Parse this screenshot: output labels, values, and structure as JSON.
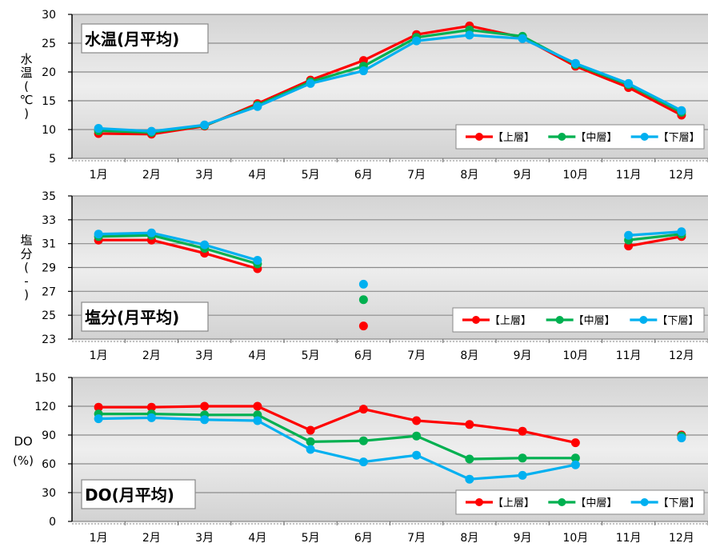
{
  "chart_data": [
    {
      "type": "line",
      "title": "水温(月平均)",
      "ylabel": "水温(℃)",
      "categories": [
        "1月",
        "2月",
        "3月",
        "4月",
        "5月",
        "6月",
        "7月",
        "8月",
        "9月",
        "10月",
        "11月",
        "12月"
      ],
      "ylim": [
        5,
        30
      ],
      "yticks": [
        5,
        10,
        15,
        20,
        25,
        30
      ],
      "grid": true,
      "legend_position": "bottom-right",
      "series": [
        {
          "name": "【上層】",
          "color": "#ff0000",
          "values": [
            9.3,
            9.2,
            10.6,
            14.5,
            18.6,
            22.0,
            26.5,
            28.0,
            26.0,
            21.0,
            17.3,
            12.5
          ]
        },
        {
          "name": "【中層】",
          "color": "#00b050",
          "values": [
            9.8,
            9.5,
            10.7,
            14.2,
            18.3,
            21.0,
            26.0,
            27.3,
            26.2,
            21.3,
            17.8,
            13.0
          ]
        },
        {
          "name": "【下層】",
          "color": "#00b0f0",
          "values": [
            10.2,
            9.7,
            10.8,
            14.0,
            18.0,
            20.2,
            25.4,
            26.4,
            25.8,
            21.5,
            18.0,
            13.3
          ]
        }
      ]
    },
    {
      "type": "line",
      "title": "塩分(月平均)",
      "ylabel": "塩分(-)",
      "categories": [
        "1月",
        "2月",
        "3月",
        "4月",
        "5月",
        "6月",
        "7月",
        "8月",
        "9月",
        "10月",
        "11月",
        "12月"
      ],
      "ylim": [
        23,
        35
      ],
      "yticks": [
        23,
        25,
        27,
        29,
        31,
        33,
        35
      ],
      "grid": true,
      "legend_position": "bottom-right",
      "series": [
        {
          "name": "【上層】",
          "color": "#ff0000",
          "values": [
            31.3,
            31.3,
            30.2,
            28.9,
            null,
            24.1,
            null,
            null,
            null,
            null,
            30.8,
            31.6
          ]
        },
        {
          "name": "【中層】",
          "color": "#00b050",
          "values": [
            31.6,
            31.7,
            30.6,
            29.3,
            null,
            26.3,
            null,
            null,
            null,
            null,
            31.3,
            31.8
          ]
        },
        {
          "name": "【下層】",
          "color": "#00b0f0",
          "values": [
            31.8,
            31.9,
            30.9,
            29.6,
            null,
            27.6,
            null,
            null,
            null,
            null,
            31.7,
            32.0
          ]
        }
      ]
    },
    {
      "type": "line",
      "title": "DO(月平均)",
      "ylabel": "DO(%)",
      "categories": [
        "1月",
        "2月",
        "3月",
        "4月",
        "5月",
        "6月",
        "7月",
        "8月",
        "9月",
        "10月",
        "11月",
        "12月"
      ],
      "ylim": [
        0,
        150
      ],
      "yticks": [
        0,
        30,
        60,
        90,
        120,
        150
      ],
      "grid": true,
      "legend_position": "bottom-right",
      "series": [
        {
          "name": "【上層】",
          "color": "#ff0000",
          "values": [
            119,
            119,
            120,
            120,
            95,
            117,
            105,
            101,
            94,
            82,
            null,
            90
          ]
        },
        {
          "name": "【中層】",
          "color": "#00b050",
          "values": [
            112,
            112,
            111,
            111,
            83,
            84,
            89,
            65,
            66,
            66,
            null,
            89
          ]
        },
        {
          "name": "【下層】",
          "color": "#00b0f0",
          "values": [
            107,
            108,
            106,
            105,
            75,
            62,
            69,
            44,
            48,
            59,
            null,
            87
          ]
        }
      ]
    }
  ]
}
